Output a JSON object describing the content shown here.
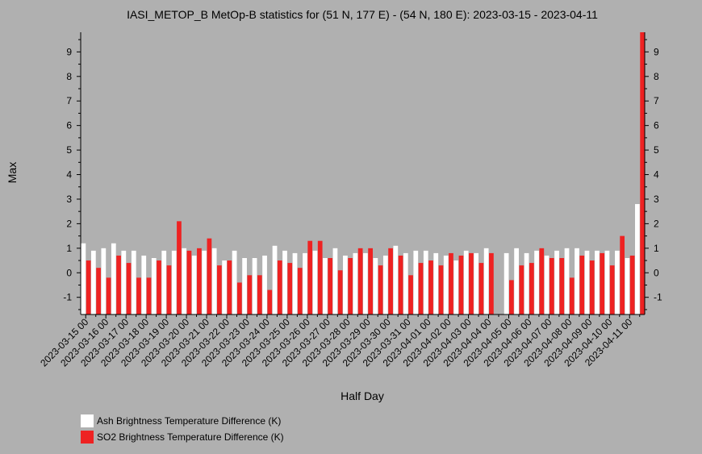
{
  "chart_data": {
    "type": "bar",
    "title": "IASI_METOP_B MetOp-B statistics for (51 N, 177 E) - (54 N, 180 E): 2023-03-15 - 2023-04-11",
    "xlabel": "Half Day",
    "ylabel": "Max",
    "ylim": [
      -1.7,
      9.8
    ],
    "yticks": [
      -1,
      0,
      1,
      2,
      3,
      4,
      5,
      6,
      7,
      8,
      9
    ],
    "categories": [
      "2023-03-15 00",
      "2023-03-15 12",
      "2023-03-16 00",
      "2023-03-16 12",
      "2023-03-17 00",
      "2023-03-17 12",
      "2023-03-18 00",
      "2023-03-18 12",
      "2023-03-19 00",
      "2023-03-19 12",
      "2023-03-20 00",
      "2023-03-20 12",
      "2023-03-21 00",
      "2023-03-21 12",
      "2023-03-22 00",
      "2023-03-22 12",
      "2023-03-23 00",
      "2023-03-23 12",
      "2023-03-24 00",
      "2023-03-24 12",
      "2023-03-25 00",
      "2023-03-25 12",
      "2023-03-26 00",
      "2023-03-26 12",
      "2023-03-27 00",
      "2023-03-27 12",
      "2023-03-28 00",
      "2023-03-28 12",
      "2023-03-29 00",
      "2023-03-29 12",
      "2023-03-30 00",
      "2023-03-30 12",
      "2023-03-31 00",
      "2023-03-31 12",
      "2023-04-01 00",
      "2023-04-01 12",
      "2023-04-02 00",
      "2023-04-02 12",
      "2023-04-03 00",
      "2023-04-03 12",
      "2023-04-04 00",
      "2023-04-04 12",
      "2023-04-05 00",
      "2023-04-05 12",
      "2023-04-06 00",
      "2023-04-06 12",
      "2023-04-07 00",
      "2023-04-07 12",
      "2023-04-08 00",
      "2023-04-08 12",
      "2023-04-09 00",
      "2023-04-09 12",
      "2023-04-10 00",
      "2023-04-10 12",
      "2023-04-11 00",
      "2023-04-11 12"
    ],
    "xticklabels": [
      "2023-03-15 00",
      "2023-03-16 00",
      "2023-03-17 00",
      "2023-03-18 00",
      "2023-03-19 00",
      "2023-03-20 00",
      "2023-03-21 00",
      "2023-03-22 00",
      "2023-03-23 00",
      "2023-03-24 00",
      "2023-03-25 00",
      "2023-03-26 00",
      "2023-03-27 00",
      "2023-03-28 00",
      "2023-03-29 00",
      "2023-03-30 00",
      "2023-03-31 00",
      "2023-04-01 00",
      "2023-04-02 00",
      "2023-04-03 00",
      "2023-04-04 00",
      "2023-04-05 00",
      "2023-04-06 00",
      "2023-04-07 00",
      "2023-04-08 00",
      "2023-04-09 00",
      "2023-04-10 00",
      "2023-04-11 00"
    ],
    "series": [
      {
        "name": "Ash Brightness Temperature Difference (K)",
        "color": "#ffffff",
        "values": [
          1.2,
          0.9,
          1.0,
          1.2,
          0.9,
          0.9,
          0.7,
          0.6,
          0.9,
          0.9,
          1.0,
          0.7,
          0.9,
          1.0,
          0.5,
          0.9,
          0.6,
          0.6,
          0.7,
          1.1,
          0.9,
          0.8,
          0.8,
          0.9,
          0.6,
          1.0,
          0.7,
          0.8,
          0.8,
          0.6,
          0.7,
          1.1,
          0.8,
          0.9,
          0.9,
          0.8,
          0.7,
          0.5,
          0.9,
          0.8,
          1.0,
          null,
          0.8,
          1.0,
          0.8,
          0.9,
          0.7,
          0.9,
          1.0,
          1.0,
          0.9,
          0.9,
          0.9,
          0.9,
          0.6,
          2.8
        ]
      },
      {
        "name": "SO2 Brightness Temperature Difference (K)",
        "color": "#ee2222",
        "values": [
          0.5,
          0.2,
          -0.2,
          0.7,
          0.4,
          -0.2,
          -0.2,
          0.5,
          0.3,
          2.1,
          0.9,
          1.0,
          1.4,
          0.3,
          0.5,
          -0.4,
          -0.1,
          -0.1,
          -0.7,
          0.5,
          0.4,
          0.2,
          1.3,
          1.3,
          0.6,
          0.1,
          0.6,
          1.0,
          1.0,
          0.3,
          1.0,
          0.7,
          -0.1,
          0.4,
          0.5,
          0.3,
          0.8,
          0.7,
          0.8,
          0.4,
          0.8,
          null,
          -0.3,
          0.3,
          0.4,
          1.0,
          0.6,
          0.6,
          -0.2,
          0.7,
          0.5,
          0.8,
          0.3,
          1.5,
          0.7,
          9.8
        ]
      }
    ],
    "legend": "bottom-left",
    "grid": false
  }
}
